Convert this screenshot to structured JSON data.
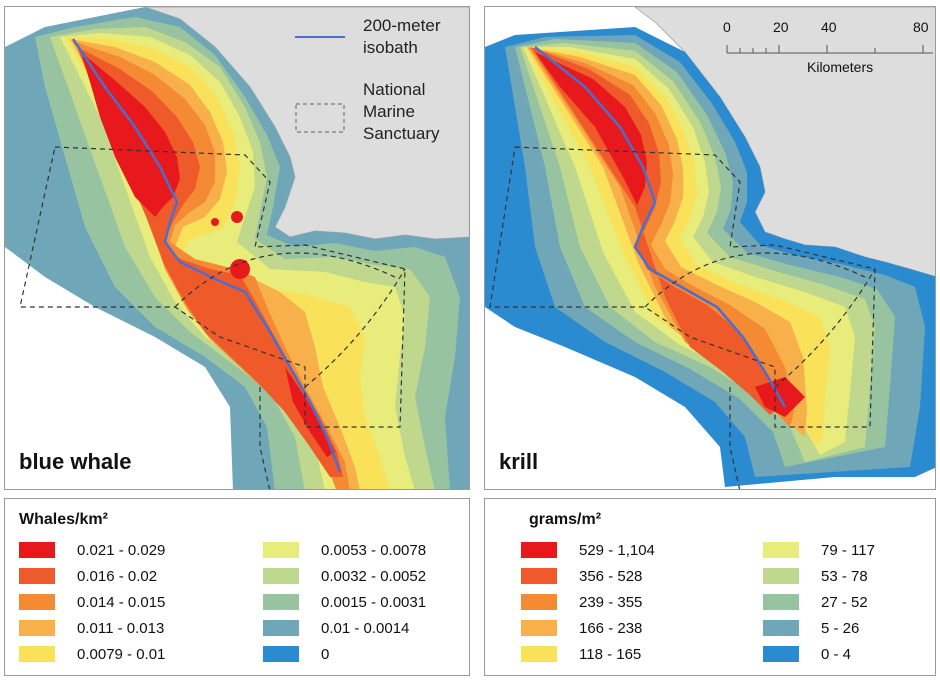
{
  "maps": {
    "whale": {
      "label": "blue whale"
    },
    "krill": {
      "label": "krill"
    }
  },
  "map_legend": {
    "isobath": "200-meter\nisobath",
    "isobath_line1": "200-meter",
    "isobath_line2": "isobath",
    "sanctuary_line1": "National",
    "sanctuary_line2": "Marine",
    "sanctuary_line3": "Sanctuary",
    "isobath_color": "#4a6fd0"
  },
  "scale": {
    "ticks": [
      "0",
      "20",
      "40",
      "80"
    ],
    "unit": "Kilometers"
  },
  "whale_legend": {
    "title": "Whales/km²",
    "classes": [
      {
        "label": "0.021 - 0.029",
        "color": "#e8191c"
      },
      {
        "label": "0.016 - 0.02",
        "color": "#ef5a2a"
      },
      {
        "label": "0.014 - 0.015",
        "color": "#f58a34"
      },
      {
        "label": "0.011 - 0.013",
        "color": "#f8b04a"
      },
      {
        "label": "0.0079 - 0.01",
        "color": "#f9e15a"
      },
      {
        "label": "0.0053 - 0.0078",
        "color": "#e7ec7a"
      },
      {
        "label": "0.0032 - 0.0052",
        "color": "#bfd88e"
      },
      {
        "label": "0.0015 - 0.0031",
        "color": "#97c3a1"
      },
      {
        "label": "0.01 - 0.0014",
        "color": "#6fa7b8"
      },
      {
        "label": "0",
        "color": "#2b8bd0"
      }
    ]
  },
  "krill_legend": {
    "title": "grams/m²",
    "classes": [
      {
        "label": "529 - 1,104",
        "color": "#e8191c"
      },
      {
        "label": "356 - 528",
        "color": "#ef5a2a"
      },
      {
        "label": "239 - 355",
        "color": "#f58a34"
      },
      {
        "label": "166 - 238",
        "color": "#f8b04a"
      },
      {
        "label": "118 - 165",
        "color": "#f9e15a"
      },
      {
        "label": "79 - 117",
        "color": "#e7ec7a"
      },
      {
        "label": "53 - 78",
        "color": "#bfd88e"
      },
      {
        "label": "27 - 52",
        "color": "#97c3a1"
      },
      {
        "label": "5 - 26",
        "color": "#6fa7b8"
      },
      {
        "label": "0 - 4",
        "color": "#2b8bd0"
      }
    ]
  }
}
